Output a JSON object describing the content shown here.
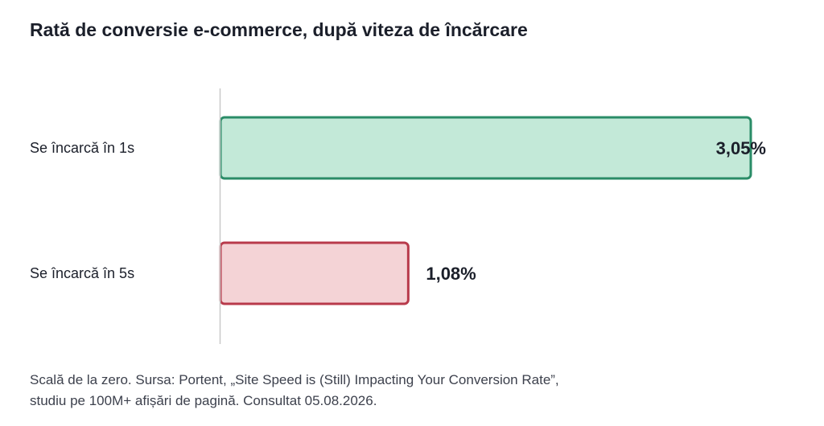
{
  "chart_data": {
    "type": "bar",
    "orientation": "horizontal",
    "title": "Rată de conversie e-commerce, după viteza de încărcare",
    "categories": [
      "Se încarcă în 1s",
      "Se încarcă în 5s"
    ],
    "values": [
      3.05,
      1.08
    ],
    "value_labels": [
      "3,05%",
      "1,08%"
    ],
    "xlim": [
      0,
      3.05
    ],
    "colors": {
      "fills": [
        "#c3e9d8",
        "#f4d3d6"
      ],
      "strokes": [
        "#2a8c67",
        "#b83a4b"
      ],
      "axis": "#c9c9c9"
    },
    "grid": false,
    "legend": "none"
  },
  "footnote": {
    "line1": "Scală de la zero. Sursa: Portent, „Site Speed is (Still) Impacting Your Conversion Rate”,",
    "line2": "studiu pe 100M+ afișări de pagină. Consultat 05.08.2026."
  }
}
